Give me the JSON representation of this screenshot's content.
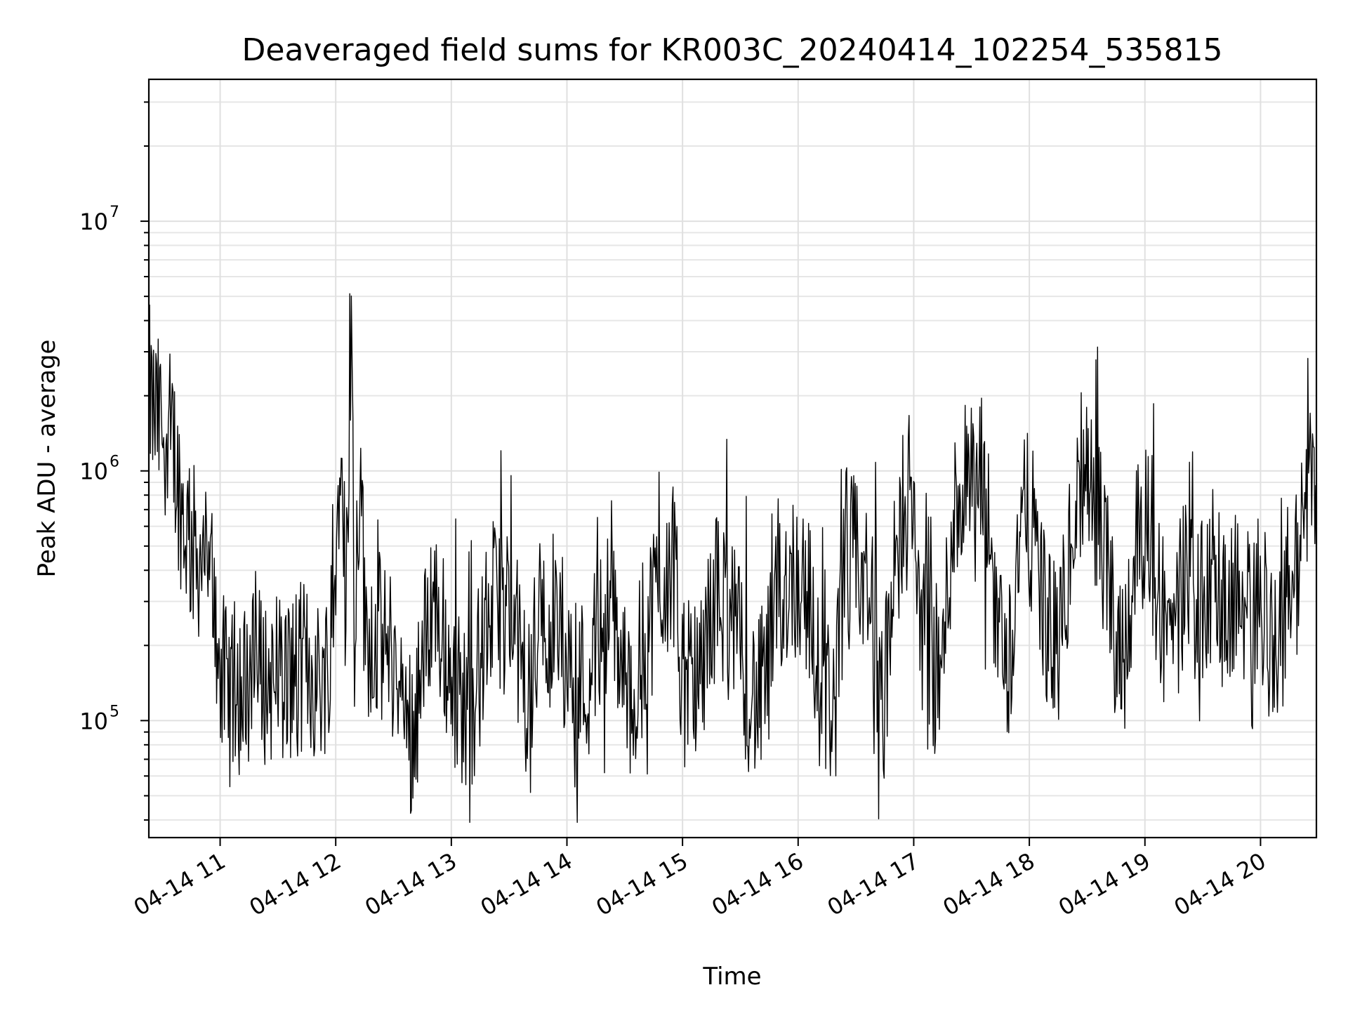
{
  "chart_data": {
    "type": "line",
    "title": "Deaveraged field sums for KR003C_20240414_102254_535815",
    "xlabel": "Time",
    "ylabel": "Peak ADU - average",
    "yscale": "log",
    "ylim": [
      34000,
      37000000
    ],
    "xlim": [
      "04-14 10:23",
      "04-14 20:29"
    ],
    "grid": true,
    "x_ticks": [
      "04-14 11",
      "04-14 12",
      "04-14 13",
      "04-14 14",
      "04-14 15",
      "04-14 16",
      "04-14 17",
      "04-14 18",
      "04-14 19",
      "04-14 20"
    ],
    "y_ticks": [
      {
        "base": "10",
        "exp": "5"
      },
      {
        "base": "10",
        "exp": "6"
      },
      {
        "base": "10",
        "exp": "7"
      }
    ],
    "series": [
      {
        "color": "#000000",
        "x": [
          "10:23",
          "10:25",
          "10:30",
          "10:35",
          "10:40",
          "10:45",
          "10:50",
          "10:55",
          "11:00",
          "11:05",
          "11:10",
          "11:15",
          "11:20",
          "11:25",
          "11:30",
          "11:35",
          "11:40",
          "11:45",
          "11:50",
          "11:55",
          "12:00",
          "12:03",
          "12:05",
          "12:08",
          "12:10",
          "12:13",
          "12:15",
          "12:20",
          "12:25",
          "12:30",
          "12:35",
          "12:40",
          "12:45",
          "12:50",
          "12:55",
          "13:00",
          "13:05",
          "13:10",
          "13:15",
          "13:20",
          "13:25",
          "13:30",
          "13:35",
          "13:40",
          "13:45",
          "13:50",
          "13:55",
          "14:00",
          "14:05",
          "14:10",
          "14:15",
          "14:20",
          "14:25",
          "14:30",
          "14:35",
          "14:40",
          "14:45",
          "14:50",
          "14:55",
          "15:00",
          "15:05",
          "15:10",
          "15:15",
          "15:20",
          "15:25",
          "15:30",
          "15:35",
          "15:40",
          "15:45",
          "15:50",
          "15:55",
          "16:00",
          "16:05",
          "16:10",
          "16:15",
          "16:20",
          "16:25",
          "16:30",
          "16:35",
          "16:40",
          "16:45",
          "16:50",
          "16:55",
          "17:00",
          "17:05",
          "17:10",
          "17:15",
          "17:20",
          "17:25",
          "17:30",
          "17:35",
          "17:40",
          "17:45",
          "17:50",
          "17:55",
          "18:00",
          "18:05",
          "18:10",
          "18:15",
          "18:20",
          "18:25",
          "18:30",
          "18:35",
          "18:40",
          "18:45",
          "18:50",
          "18:55",
          "19:00",
          "19:05",
          "19:10",
          "19:15",
          "19:20",
          "19:25",
          "19:30",
          "19:35",
          "19:40",
          "19:45",
          "19:50",
          "19:55",
          "20:00",
          "20:05",
          "20:10",
          "20:15",
          "20:20",
          "20:25",
          "20:29"
        ],
        "y": [
          2200000,
          1700000,
          1500000,
          1400000,
          700000,
          500000,
          450000,
          420000,
          160000,
          120000,
          130000,
          150000,
          160000,
          140000,
          170000,
          150000,
          160000,
          170000,
          140000,
          160000,
          350000,
          2500000,
          300000,
          4000000,
          250000,
          1500000,
          220000,
          230000,
          200000,
          180000,
          110000,
          90000,
          160000,
          330000,
          230000,
          160000,
          120000,
          110000,
          170000,
          280000,
          300000,
          280000,
          190000,
          120000,
          230000,
          270000,
          260000,
          180000,
          150000,
          140000,
          200000,
          280000,
          230000,
          160000,
          130000,
          200000,
          300000,
          380000,
          420000,
          150000,
          130000,
          140000,
          300000,
          320000,
          250000,
          190000,
          130000,
          120000,
          170000,
          300000,
          380000,
          380000,
          330000,
          150000,
          120000,
          130000,
          500000,
          420000,
          350000,
          220000,
          130000,
          350000,
          780000,
          600000,
          210000,
          160000,
          160000,
          650000,
          800000,
          850000,
          900000,
          500000,
          220000,
          180000,
          600000,
          650000,
          400000,
          220000,
          200000,
          400000,
          750000,
          850000,
          700000,
          400000,
          220000,
          200000,
          500000,
          700000,
          400000,
          250000,
          230000,
          350000,
          320000,
          280000,
          320000,
          300000,
          330000,
          280000,
          280000,
          330000,
          240000,
          200000,
          350000,
          400000,
          1100000,
          1000000
        ]
      }
    ]
  }
}
